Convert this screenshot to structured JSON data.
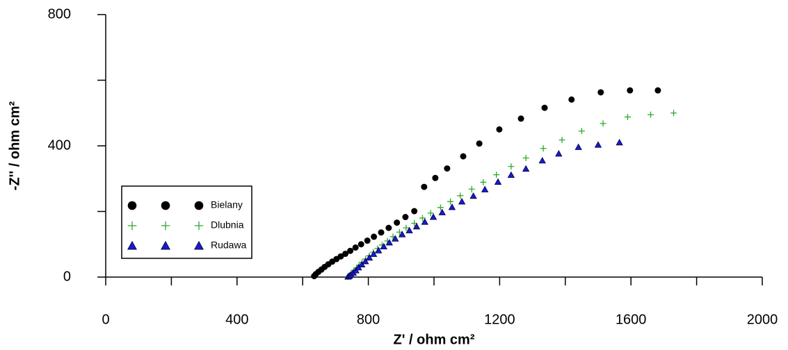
{
  "chart_data": {
    "type": "scatter",
    "x_label": "Z' / ohm cm²",
    "y_label": "-Z'' / ohm cm²",
    "xlim": [
      0,
      2000
    ],
    "ylim": [
      0,
      800
    ],
    "xticks": [
      0,
      400,
      800,
      1200,
      1600,
      2000
    ],
    "yticks": [
      0,
      400,
      800
    ],
    "xminorticks": [
      200,
      600,
      1000,
      1400,
      1800
    ],
    "yminorticks": [
      200,
      600
    ],
    "legend": "center left",
    "series": [
      {
        "name": "Bielany",
        "color": "#000000",
        "marker": "circle",
        "x": [
          635,
          640,
          648,
          657,
          667,
          678,
          690,
          703,
          716,
          730,
          745,
          761,
          778,
          797,
          817,
          839,
          862,
          887,
          913,
          940,
          970,
          1004,
          1040,
          1089,
          1138,
          1199,
          1265,
          1337,
          1419,
          1508,
          1597,
          1682
        ],
        "values": [
          3,
          9,
          16,
          23,
          31,
          39,
          47,
          55,
          63,
          71,
          80,
          90,
          100,
          111,
          123,
          136,
          150,
          166,
          183,
          201,
          275,
          302,
          331,
          368,
          407,
          450,
          483,
          516,
          541,
          563,
          569,
          569
        ]
      },
      {
        "name": "Dlubnia",
        "color": "#2ea82e",
        "marker": "plus",
        "x": [
          738,
          741,
          745,
          750,
          756,
          764,
          772,
          781,
          792,
          803,
          815,
          828,
          842,
          858,
          875,
          895,
          915,
          940,
          965,
          990,
          1020,
          1050,
          1080,
          1115,
          1150,
          1190,
          1235,
          1280,
          1333,
          1390,
          1450,
          1515,
          1590,
          1660,
          1730
        ],
        "values": [
          1,
          3,
          7,
          13,
          20,
          28,
          36,
          45,
          55,
          65,
          76,
          87,
          98,
          110,
          123,
          137,
          150,
          164,
          180,
          195,
          212,
          230,
          248,
          268,
          289,
          312,
          337,
          363,
          392,
          418,
          445,
          468,
          488,
          495,
          500
        ]
      },
      {
        "name": "Rudawa",
        "color": "#1a1acc",
        "marker": "triangle",
        "x": [
          738,
          742,
          747,
          754,
          762,
          770,
          780,
          791,
          803,
          816,
          831,
          847,
          864,
          882,
          903,
          925,
          947,
          972,
          998,
          1025,
          1055,
          1085,
          1120,
          1155,
          1195,
          1235,
          1280,
          1330,
          1380,
          1440,
          1500,
          1565
        ],
        "values": [
          1,
          3,
          7,
          13,
          20,
          29,
          38,
          48,
          59,
          70,
          81,
          93,
          105,
          117,
          130,
          142,
          154,
          168,
          183,
          197,
          213,
          230,
          247,
          267,
          290,
          311,
          330,
          355,
          376,
          396,
          403,
          410
        ]
      }
    ]
  }
}
